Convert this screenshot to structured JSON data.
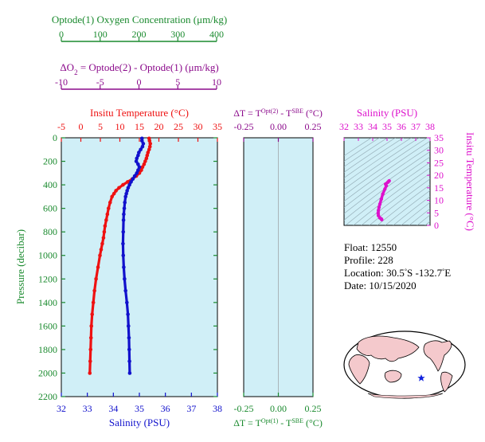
{
  "colors": {
    "panel_bg": "#d0eff7",
    "green": "#1a8a2e",
    "purple": "#8b0a8b",
    "red": "#ee1111",
    "blue": "#1111cc",
    "magenta": "#dd11cc",
    "map_land": "#f4c9cc",
    "star": "#1122dd"
  },
  "oxygen_axis": {
    "label": "Optode(1) Oxygen Concentration (μm/kg)",
    "ticks": [
      "0",
      "100",
      "200",
      "300",
      "400"
    ]
  },
  "delta_o2_axis": {
    "label_prefix": "ΔO",
    "label_sub": "2",
    "label_rest": " = Optode(2) - Optode(1)   (μm/kg)",
    "ticks": [
      "-10",
      "-5",
      "0",
      "5",
      "10"
    ]
  },
  "temp_axis": {
    "label": "Insitu Temperature (°C)",
    "ticks": [
      "-5",
      "0",
      "5",
      "10",
      "15",
      "20",
      "25",
      "30",
      "35"
    ]
  },
  "salinity_axis": {
    "label": "Salinity (PSU)",
    "ticks": [
      "32",
      "33",
      "34",
      "35",
      "36",
      "37",
      "38"
    ]
  },
  "pressure_axis": {
    "label": "Pressure (decibar)",
    "ticks": [
      "0",
      "200",
      "400",
      "600",
      "800",
      "1000",
      "1200",
      "1400",
      "1600",
      "1800",
      "2000",
      "2200"
    ]
  },
  "delta_t_top": {
    "label_a": "ΔT = T",
    "label_sup1": "Opt(2)",
    "label_b": " - T",
    "label_sup2": "SBE",
    "label_c": " (°C)",
    "ticks": [
      "-0.25",
      "0.00",
      "0.25"
    ]
  },
  "delta_t_bottom": {
    "label_a": "ΔT = T",
    "label_sup1": "Opt(1)",
    "label_b": " - T",
    "label_sup2": "SBE",
    "label_c": " (°C)",
    "ticks": [
      "-0.25",
      "0.00",
      "0.25"
    ]
  },
  "ts_panel": {
    "title": "Salinity (PSU)",
    "xticks": [
      "32",
      "33",
      "34",
      "35",
      "36",
      "37",
      "38"
    ],
    "ylabel": "Insitu Temperature (°C)",
    "yticks": [
      "0",
      "5",
      "10",
      "15",
      "20",
      "25",
      "30",
      "35"
    ]
  },
  "info": {
    "float": "Float:  12550",
    "profile": "Profile:  228",
    "location_a": "Location:  30.5",
    "location_b": "S  -132.7",
    "location_c": "E",
    "date": "Date:  10/15/2020"
  },
  "chart_data": {
    "type": "line",
    "ylim": [
      2200,
      0
    ],
    "temp_xlim": [
      -5,
      35
    ],
    "sal_xlim": [
      32,
      38
    ],
    "temperature": {
      "pressure": [
        5,
        25,
        50,
        75,
        100,
        125,
        150,
        175,
        200,
        225,
        250,
        275,
        300,
        325,
        350,
        375,
        400,
        425,
        450,
        475,
        500,
        550,
        600,
        650,
        700,
        750,
        800,
        850,
        900,
        950,
        1000,
        1100,
        1200,
        1300,
        1400,
        1500,
        1600,
        1700,
        1800,
        1900,
        2000
      ],
      "values": [
        17.5,
        17.6,
        17.8,
        17.7,
        17.5,
        17.2,
        17.0,
        16.8,
        16.5,
        16.2,
        15.8,
        15.5,
        15.0,
        14.2,
        13.2,
        12.0,
        10.8,
        9.8,
        9.0,
        8.5,
        8.0,
        7.5,
        7.1,
        6.8,
        6.5,
        6.2,
        6.0,
        5.8,
        5.5,
        5.2,
        4.9,
        4.4,
        3.9,
        3.5,
        3.2,
        2.9,
        2.7,
        2.6,
        2.5,
        2.4,
        2.3
      ]
    },
    "salinity": {
      "pressure": [
        5,
        25,
        50,
        75,
        100,
        125,
        150,
        175,
        200,
        225,
        250,
        275,
        300,
        325,
        350,
        375,
        400,
        425,
        450,
        475,
        500,
        550,
        600,
        650,
        700,
        800,
        900,
        1000,
        1100,
        1200,
        1300,
        1400,
        1500,
        1600,
        1700,
        1800,
        1900,
        2000
      ],
      "values": [
        35.1,
        35.1,
        35.15,
        35.12,
        35.05,
        34.98,
        34.95,
        34.9,
        34.88,
        34.95,
        35.0,
        34.95,
        34.9,
        34.82,
        34.75,
        34.68,
        34.62,
        34.57,
        34.53,
        34.5,
        34.47,
        34.44,
        34.42,
        34.4,
        34.39,
        34.38,
        34.37,
        34.38,
        34.4,
        34.43,
        34.47,
        34.52,
        34.56,
        34.58,
        34.6,
        34.61,
        34.62,
        34.63
      ]
    },
    "ts": {
      "salinity": [
        35.1,
        35.15,
        35.05,
        34.9,
        34.95,
        34.85,
        34.7,
        34.6,
        34.5,
        34.44,
        34.4,
        34.38,
        34.4,
        34.5,
        34.6,
        34.63
      ],
      "temperature": [
        17.5,
        17.8,
        17.2,
        16.5,
        15.8,
        14.5,
        12.5,
        10.5,
        8.5,
        7.2,
        6.0,
        4.9,
        3.9,
        3.0,
        2.6,
        2.3
      ]
    }
  }
}
